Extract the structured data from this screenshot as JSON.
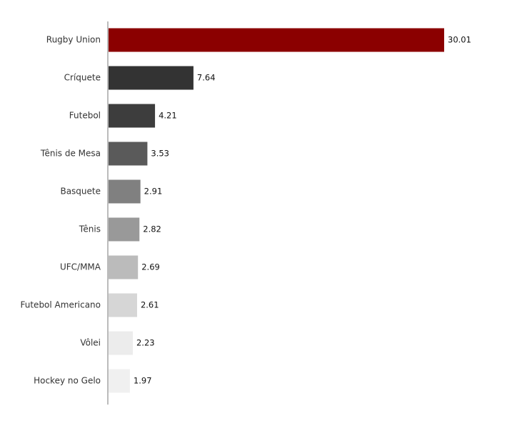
{
  "chart_data": {
    "type": "bar",
    "orientation": "horizontal",
    "categories": [
      "Rugby Union",
      "Críquete",
      "Futebol",
      "Tênis de Mesa",
      "Basquete",
      "Tênis",
      "UFC/MMA",
      "Futebol Americano",
      "Vôlei",
      "Hockey no Gelo"
    ],
    "values": [
      30.01,
      7.64,
      4.21,
      3.53,
      2.91,
      2.82,
      2.69,
      2.61,
      2.23,
      1.97
    ],
    "colors": [
      "#8b0000",
      "#333333",
      "#3d3d3d",
      "#5a5a5a",
      "#808080",
      "#999999",
      "#bbbbbb",
      "#d6d6d6",
      "#ececec",
      "#f0f0f0"
    ]
  }
}
